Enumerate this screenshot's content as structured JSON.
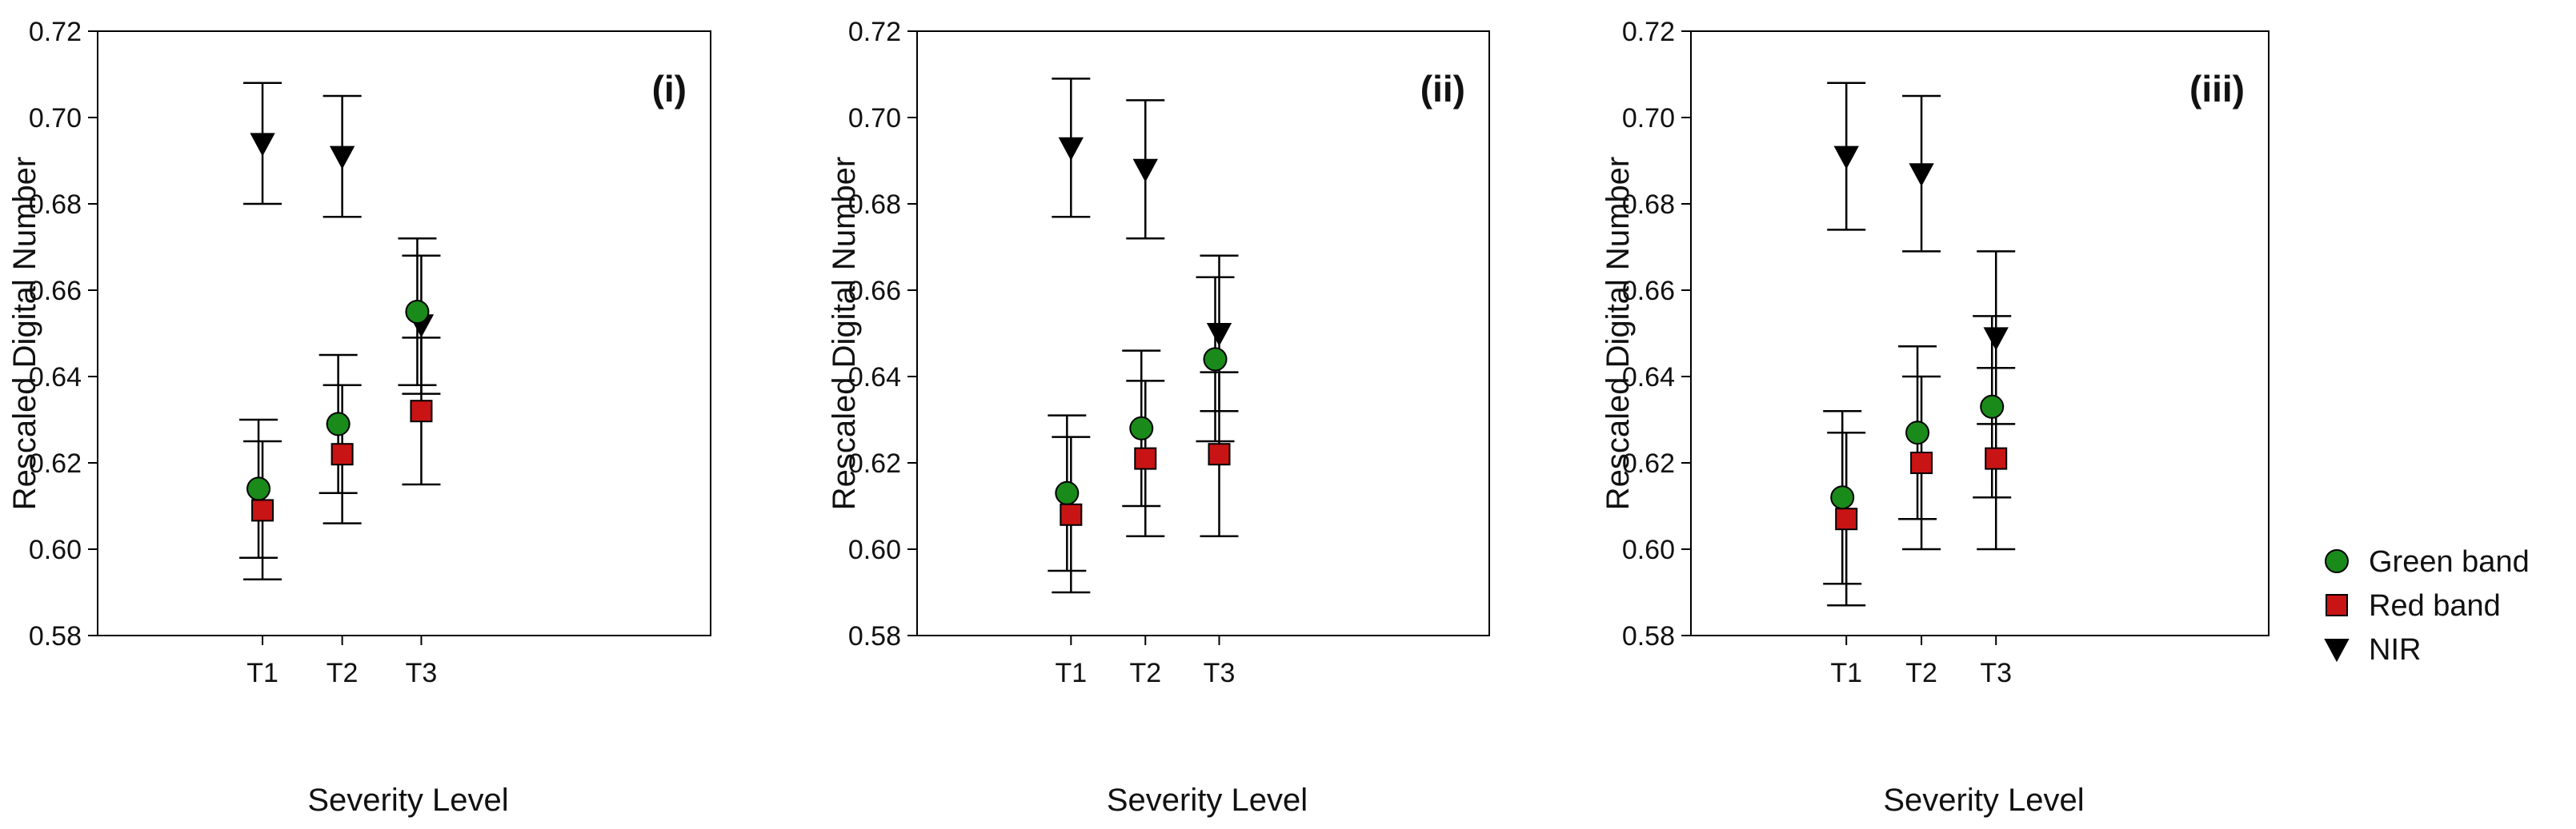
{
  "chart_data": [
    {
      "type": "scatter",
      "panel_label": "(i)",
      "categories": [
        "T1",
        "T2",
        "T3"
      ],
      "xlabel": "Severity Level",
      "ylabel": "Rescaled Digital Number",
      "ylim": [
        0.58,
        0.72
      ],
      "yticks": [
        0.58,
        0.6,
        0.62,
        0.64,
        0.66,
        0.68,
        0.7,
        0.72
      ],
      "series": [
        {
          "name": "Green band",
          "marker": "circle",
          "color": "#1a8a1a",
          "values": [
            0.614,
            0.629,
            0.655
          ],
          "lower": [
            0.598,
            0.613,
            0.638
          ],
          "upper": [
            0.63,
            0.645,
            0.672
          ]
        },
        {
          "name": "Red band",
          "marker": "square",
          "color": "#c81414",
          "values": [
            0.609,
            0.622,
            0.632
          ],
          "lower": [
            0.593,
            0.606,
            0.615
          ],
          "upper": [
            0.625,
            0.638,
            0.649
          ]
        },
        {
          "name": "NIR",
          "marker": "triangle-down",
          "color": "#000000",
          "values": [
            0.694,
            0.691,
            0.652
          ],
          "lower": [
            0.68,
            0.677,
            0.636
          ],
          "upper": [
            0.708,
            0.705,
            0.668
          ]
        }
      ]
    },
    {
      "type": "scatter",
      "panel_label": "(ii)",
      "categories": [
        "T1",
        "T2",
        "T3"
      ],
      "xlabel": "Severity Level",
      "ylabel": "Rescaled Digital Number",
      "ylim": [
        0.58,
        0.72
      ],
      "yticks": [
        0.58,
        0.6,
        0.62,
        0.64,
        0.66,
        0.68,
        0.7,
        0.72
      ],
      "series": [
        {
          "name": "Green band",
          "marker": "circle",
          "color": "#1a8a1a",
          "values": [
            0.613,
            0.628,
            0.644
          ],
          "lower": [
            0.595,
            0.61,
            0.625
          ],
          "upper": [
            0.631,
            0.646,
            0.663
          ]
        },
        {
          "name": "Red band",
          "marker": "square",
          "color": "#c81414",
          "values": [
            0.608,
            0.621,
            0.622
          ],
          "lower": [
            0.59,
            0.603,
            0.603
          ],
          "upper": [
            0.626,
            0.639,
            0.641
          ]
        },
        {
          "name": "NIR",
          "marker": "triangle-down",
          "color": "#000000",
          "values": [
            0.693,
            0.688,
            0.65
          ],
          "lower": [
            0.677,
            0.672,
            0.632
          ],
          "upper": [
            0.709,
            0.704,
            0.668
          ]
        }
      ]
    },
    {
      "type": "scatter",
      "panel_label": "(iii)",
      "categories": [
        "T1",
        "T2",
        "T3"
      ],
      "xlabel": "Severity Level",
      "ylabel": "Rescaled Digital Number",
      "ylim": [
        0.58,
        0.72
      ],
      "yticks": [
        0.58,
        0.6,
        0.62,
        0.64,
        0.66,
        0.68,
        0.7,
        0.72
      ],
      "series": [
        {
          "name": "Green band",
          "marker": "circle",
          "color": "#1a8a1a",
          "values": [
            0.612,
            0.627,
            0.633
          ],
          "lower": [
            0.592,
            0.607,
            0.612
          ],
          "upper": [
            0.632,
            0.647,
            0.654
          ]
        },
        {
          "name": "Red band",
          "marker": "square",
          "color": "#c81414",
          "values": [
            0.607,
            0.62,
            0.621
          ],
          "lower": [
            0.587,
            0.6,
            0.6
          ],
          "upper": [
            0.627,
            0.64,
            0.642
          ]
        },
        {
          "name": "NIR",
          "marker": "triangle-down",
          "color": "#000000",
          "values": [
            0.691,
            0.687,
            0.649
          ],
          "lower": [
            0.674,
            0.669,
            0.629
          ],
          "upper": [
            0.708,
            0.705,
            0.669
          ]
        }
      ]
    }
  ],
  "legend": {
    "placement": "right",
    "items": [
      {
        "label": "Green band",
        "marker": "circle",
        "color": "#1a8a1a"
      },
      {
        "label": "Red band",
        "marker": "square",
        "color": "#c81414"
      },
      {
        "label": "NIR",
        "marker": "triangle-down",
        "color": "#000000"
      }
    ]
  }
}
